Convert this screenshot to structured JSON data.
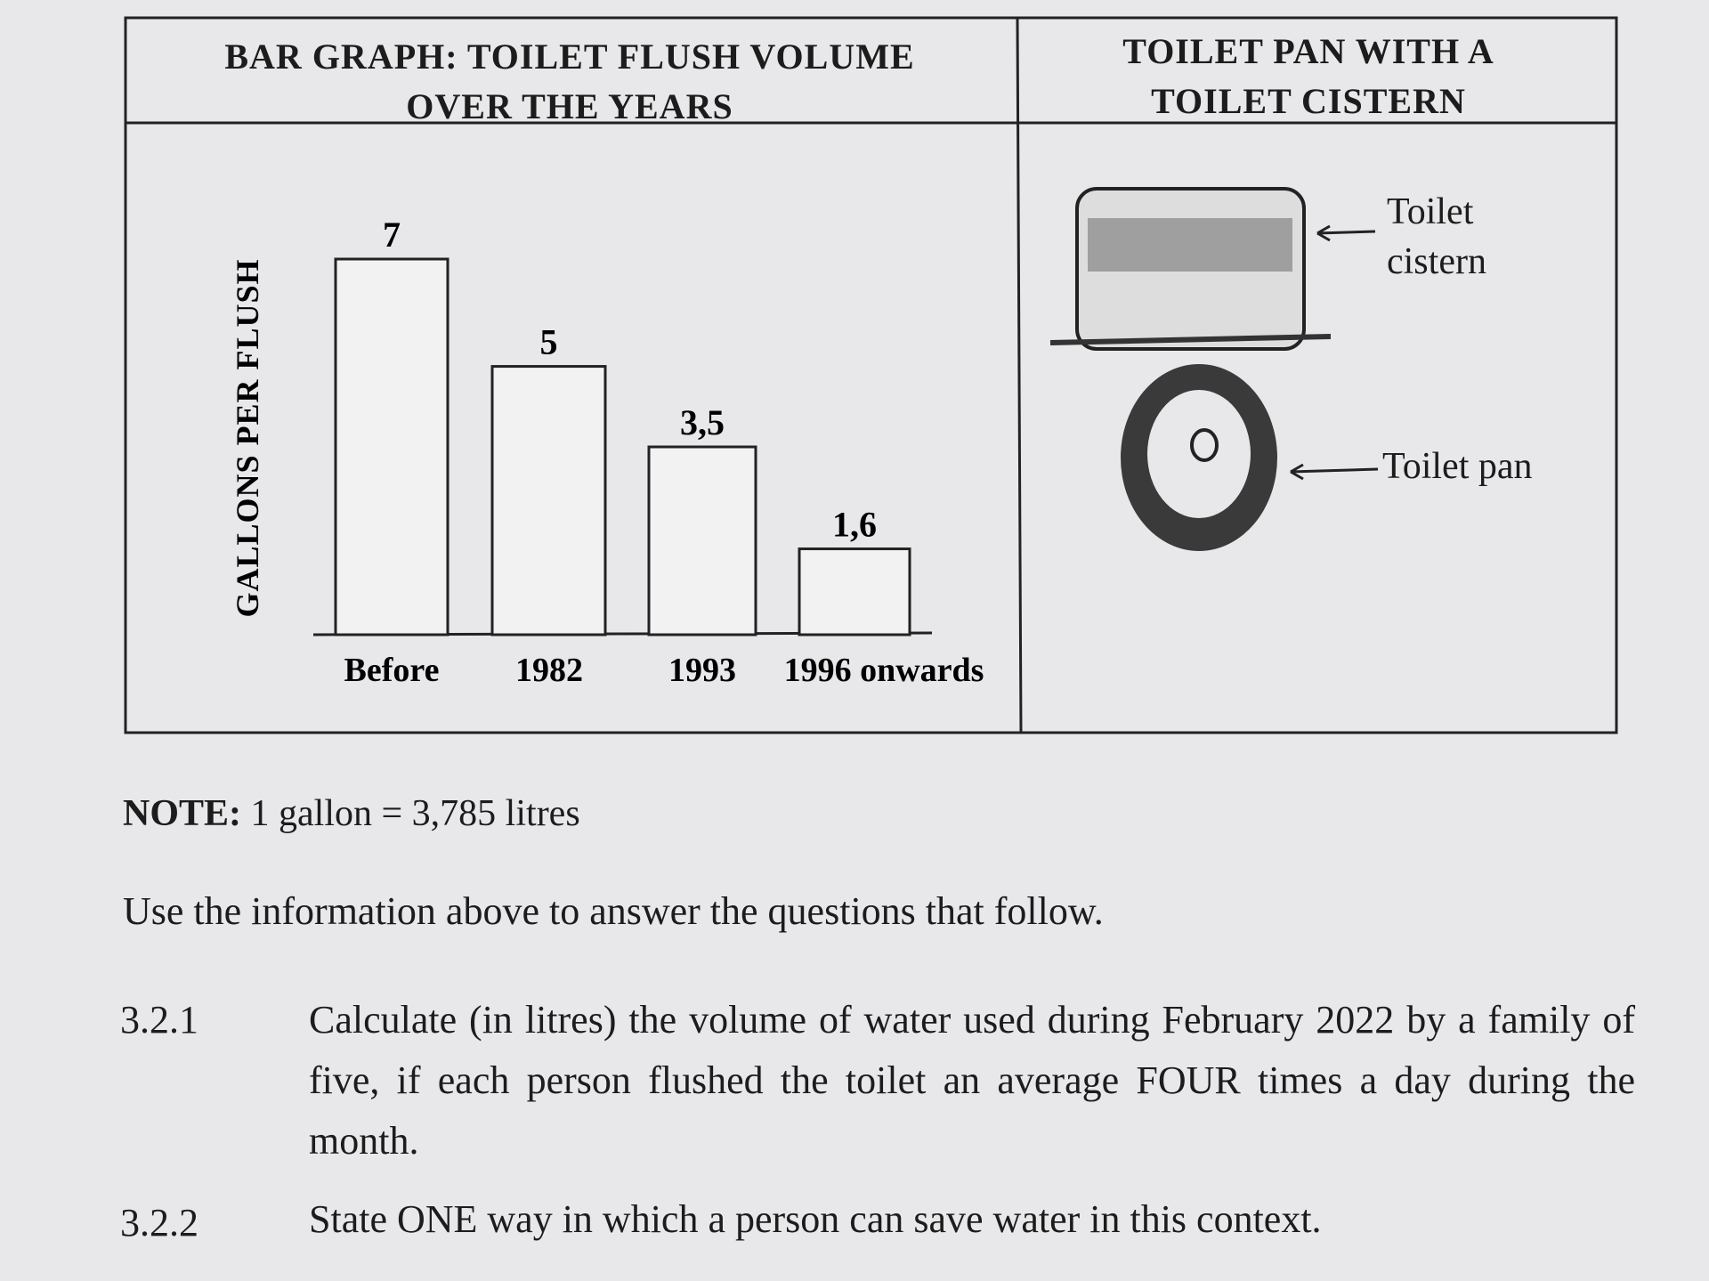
{
  "chart_data": {
    "type": "bar",
    "title": "BAR GRAPH: TOILET FLUSH VOLUME OVER THE YEARS",
    "y_label": "GALLONS PER FLUSH",
    "categories": [
      "Before",
      "1982",
      "1993",
      "1996 onwards"
    ],
    "values": [
      7,
      5,
      3.5,
      1.6
    ],
    "value_labels": [
      "7",
      "5",
      "3,5",
      "1,6"
    ],
    "ylim": [
      0,
      7
    ],
    "color": "#f2f2f2"
  },
  "diagram": {
    "title": "TOILET PAN WITH A TOILET CISTERN",
    "labels": [
      "Toilet cistern",
      "Toilet pan"
    ]
  },
  "note": {
    "label": "NOTE:",
    "text": "1 gallon = 3,785 litres"
  },
  "instruction": "Use the information above to answer the questions that follow.",
  "questions": [
    {
      "number": "3.2.1",
      "text": "Calculate (in litres) the volume of water used during February 2022 by a family of five, if each person flushed the toilet an average FOUR times a day during the month."
    },
    {
      "number": "3.2.2",
      "text": "State ONE way in which a person can save water in this context."
    }
  ]
}
